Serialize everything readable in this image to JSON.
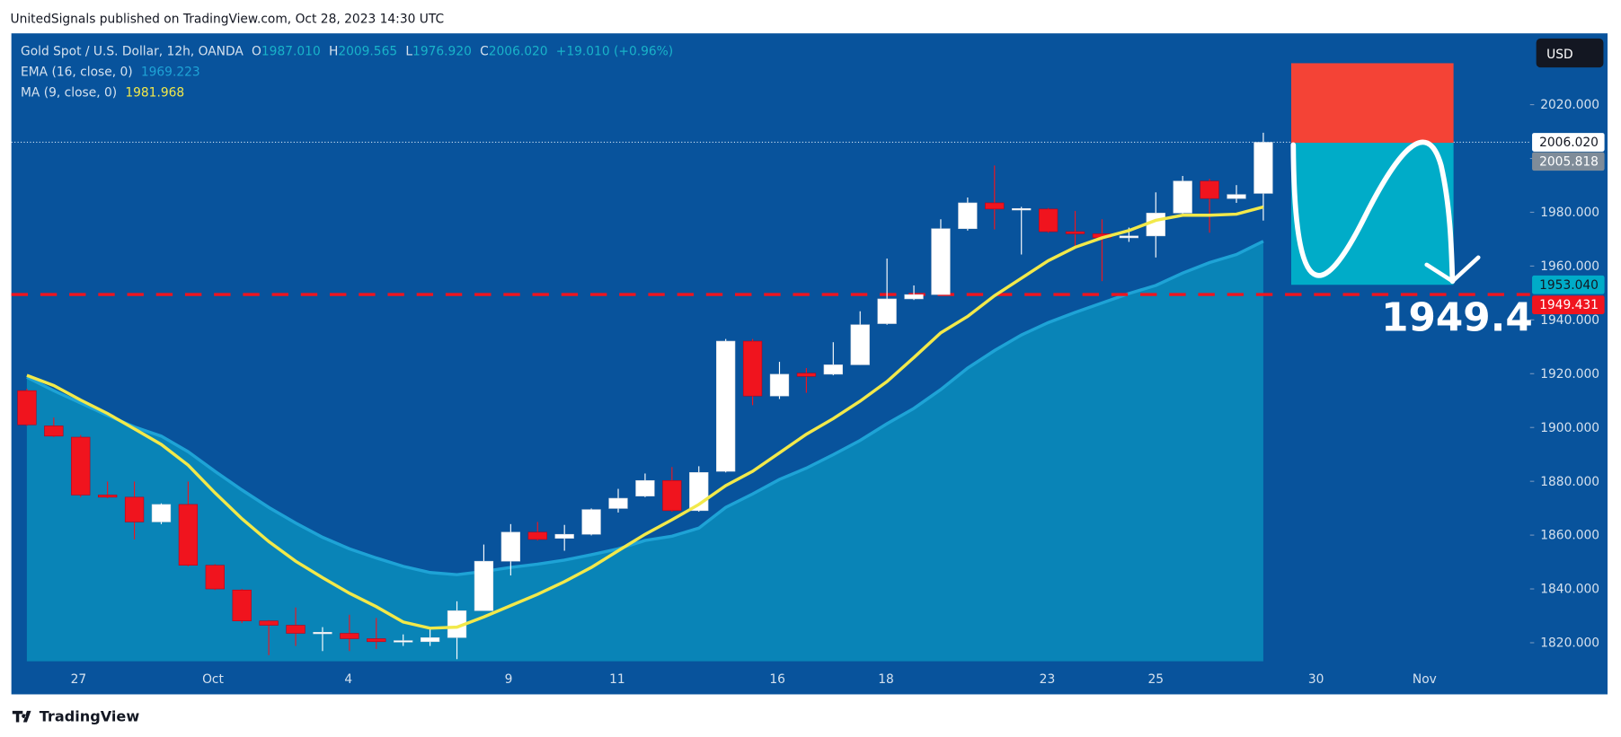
{
  "header": "UnitedSignals published on TradingView.com, Oct 28, 2023 14:30 UTC",
  "footer": "TradingView",
  "chart_data": {
    "type": "candlestick",
    "title": "Gold Spot / U.S. Dollar, 12h, OANDA",
    "legend": {
      "o_label": "O",
      "o": "1987.010",
      "h_label": "H",
      "h": "2009.565",
      "l_label": "L",
      "l": "1976.920",
      "c_label": "C",
      "c": "2006.020",
      "change": "+19.010 (+0.96%)"
    },
    "currency": "USD",
    "ylim": [
      1813.1,
      2046.5
    ],
    "yticks": [
      {
        "value": 1820,
        "label": "1820.000"
      },
      {
        "value": 1840,
        "label": "1840.000"
      },
      {
        "value": 1860,
        "label": "1860.000"
      },
      {
        "value": 1880,
        "label": "1880.000"
      },
      {
        "value": 1900,
        "label": "1900.000"
      },
      {
        "value": 1920,
        "label": "1920.000"
      },
      {
        "value": 1940,
        "label": "1940.000"
      },
      {
        "value": 1960,
        "label": "1960.000"
      },
      {
        "value": 1980,
        "label": "1980.000"
      },
      {
        "value": 2000,
        "label": "2000.000"
      },
      {
        "value": 2020,
        "label": "2020.000"
      }
    ],
    "xtick_labels": [
      "27",
      "Oct",
      "4",
      "9",
      "11",
      "16",
      "18",
      "23",
      "25",
      "30",
      "Nov"
    ],
    "up_color": "#ffffff",
    "down_color": "#f0141e",
    "open": [
      1913.7,
      1900.6,
      1896.4,
      1874.9,
      1874.1,
      1864.9,
      1871.4,
      1848.8,
      1839.6,
      1828.1,
      1826.5,
      1823.5,
      1823.5,
      1821.5,
      1820.4,
      1820.4,
      1821.9,
      1831.9,
      1850.3,
      1861.1,
      1858.8,
      1860.3,
      1869.9,
      1874.5,
      1880.3,
      1869.1,
      1883.7,
      1932.1,
      1911.7,
      1920.2,
      1919.8,
      1923.3,
      1938.6,
      1947.8,
      1949.4,
      1973.9,
      1983.5,
      1981.2,
      1981.2,
      1972.8,
      1972.0,
      1970.5,
      1971.2,
      1979.7,
      1991.6,
      1985.1,
      1987.01
    ],
    "high": [
      1914.4,
      1903.7,
      1897.2,
      1879.9,
      1879.9,
      1871.8,
      1879.9,
      1849.2,
      1840.0,
      1828.4,
      1833.1,
      1825.8,
      1830.4,
      1829.2,
      1823.1,
      1825.8,
      1835.4,
      1856.5,
      1864.1,
      1864.9,
      1863.8,
      1869.9,
      1877.2,
      1882.9,
      1885.3,
      1885.6,
      1932.9,
      1932.9,
      1924.4,
      1922.1,
      1931.7,
      1943.2,
      1962.8,
      1952.8,
      1977.4,
      1985.5,
      1997.4,
      1982.0,
      1981.6,
      1980.5,
      1977.4,
      1974.3,
      1987.4,
      1993.5,
      1992.4,
      1990.1,
      2009.565
    ],
    "low": [
      1900.6,
      1896.4,
      1874.1,
      1873.7,
      1858.4,
      1864.1,
      1848.4,
      1839.6,
      1827.3,
      1815.4,
      1818.8,
      1816.9,
      1816.9,
      1817.7,
      1818.8,
      1818.8,
      1813.9,
      1831.9,
      1845.0,
      1858.0,
      1854.2,
      1859.9,
      1868.4,
      1874.1,
      1868.7,
      1868.7,
      1883.3,
      1908.3,
      1910.6,
      1912.9,
      1919.4,
      1923.3,
      1938.2,
      1947.4,
      1949.4,
      1973.2,
      1973.6,
      1964.3,
      1972.4,
      1966.6,
      1954.4,
      1969.0,
      1963.2,
      1979.3,
      1972.4,
      1983.5,
      1976.92
    ],
    "close": [
      1901.0,
      1896.8,
      1874.9,
      1874.1,
      1864.9,
      1871.4,
      1848.8,
      1840.0,
      1828.1,
      1826.5,
      1823.5,
      1823.9,
      1821.5,
      1820.4,
      1820.8,
      1821.9,
      1831.9,
      1850.3,
      1861.1,
      1858.4,
      1860.3,
      1869.5,
      1873.7,
      1880.3,
      1869.1,
      1883.3,
      1932.1,
      1911.7,
      1919.8,
      1919.0,
      1923.3,
      1938.2,
      1947.8,
      1949.4,
      1973.9,
      1983.5,
      1981.2,
      1981.4,
      1972.8,
      1972.0,
      1970.5,
      1971.2,
      1979.7,
      1991.6,
      1985.1,
      1986.6,
      2006.02
    ],
    "series": [
      {
        "name": "EMA (16, close, 0)",
        "value_label": "1969.223",
        "color": "#1ea3d6",
        "fill": "#0a87b8",
        "values": [
          1918.7,
          1913.7,
          1909.1,
          1904.5,
          1900.2,
          1896.8,
          1891.0,
          1883.7,
          1876.8,
          1870.3,
          1864.5,
          1859.2,
          1854.9,
          1851.5,
          1848.4,
          1846.1,
          1845.3,
          1846.5,
          1848.0,
          1849.2,
          1850.7,
          1852.7,
          1854.9,
          1858.0,
          1859.6,
          1862.6,
          1870.3,
          1875.3,
          1880.7,
          1884.9,
          1889.9,
          1895.2,
          1901.4,
          1907.1,
          1914.1,
          1922.1,
          1928.6,
          1934.4,
          1939.0,
          1942.8,
          1946.3,
          1949.8,
          1952.8,
          1957.4,
          1961.3,
          1964.3,
          1969.223
        ]
      },
      {
        "name": "MA (9, close, 0)",
        "value_label": "1981.968",
        "color": "#f2e94a",
        "values": [
          1919.4,
          1915.6,
          1910.2,
          1905.2,
          1899.5,
          1893.7,
          1886.0,
          1875.7,
          1866.1,
          1857.6,
          1850.3,
          1844.2,
          1838.4,
          1833.4,
          1827.7,
          1825.4,
          1825.8,
          1829.6,
          1833.8,
          1838.0,
          1842.7,
          1848.0,
          1854.2,
          1860.3,
          1865.7,
          1871.4,
          1878.4,
          1883.7,
          1890.6,
          1897.5,
          1903.3,
          1909.8,
          1917.1,
          1926.0,
          1935.2,
          1941.3,
          1949.0,
          1955.5,
          1962.0,
          1967.0,
          1970.5,
          1973.2,
          1977.0,
          1978.9,
          1978.9,
          1979.3,
          1981.968
        ]
      }
    ],
    "last_price": {
      "value": 2006.02,
      "label": "2006.020",
      "color": "#ffffff"
    },
    "position": {
      "stop": 2035.4,
      "entry": {
        "value": 2005.818,
        "label": "2005.818"
      },
      "target": {
        "value": 1953.04,
        "label": "1953.040"
      },
      "stop_color": "#f44336",
      "target_color": "#00acc8"
    },
    "level": {
      "value": 1949.431,
      "label": "1949.431",
      "color": "#f0141e"
    },
    "annotation": "1949.4"
  }
}
